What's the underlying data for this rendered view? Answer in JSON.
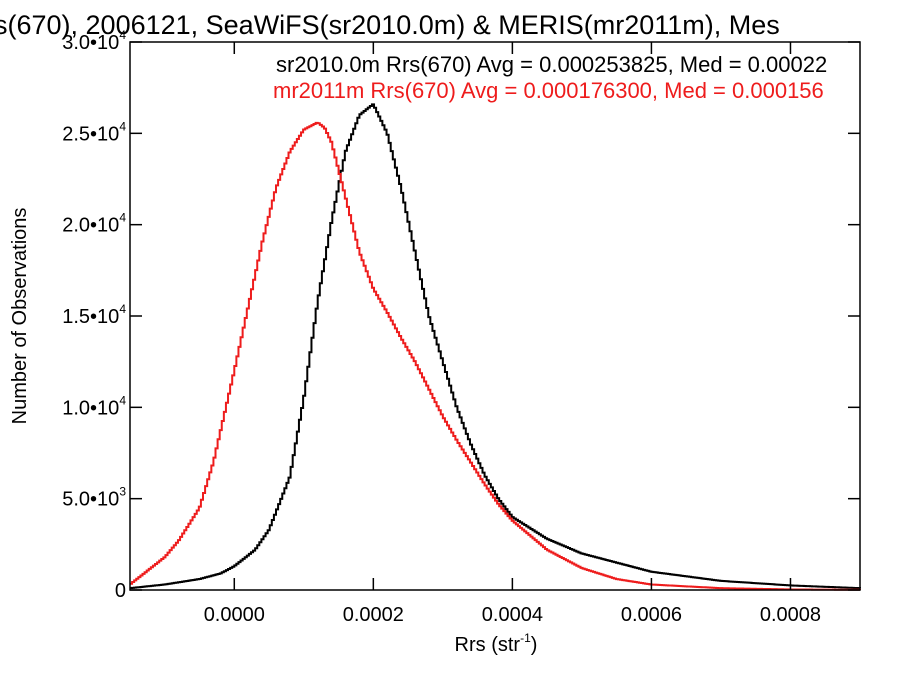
{
  "chart_data": {
    "type": "line",
    "title": "s(670), 2006121, SeaWiFS(sr2010.0m) & MERIS(mr2011m), Mes",
    "xlabel": "Rrs (str",
    "xlabel_sup": "-1",
    "xlabel_close": ")",
    "ylabel": "Number of Observations",
    "xlim": [
      -0.00015,
      0.0009
    ],
    "ylim": [
      0,
      30000
    ],
    "xticks": [
      {
        "value": 0.0,
        "label": "0.0000"
      },
      {
        "value": 0.0002,
        "label": "0.0002"
      },
      {
        "value": 0.0004,
        "label": "0.0004"
      },
      {
        "value": 0.0006,
        "label": "0.0006"
      },
      {
        "value": 0.0008,
        "label": "0.0008"
      }
    ],
    "yticks": [
      {
        "value": 0,
        "mant": "0",
        "exp": ""
      },
      {
        "value": 5000,
        "mant": "5.0•10",
        "exp": "3"
      },
      {
        "value": 10000,
        "mant": "1.0•10",
        "exp": "4"
      },
      {
        "value": 15000,
        "mant": "1.5•10",
        "exp": "4"
      },
      {
        "value": 20000,
        "mant": "2.0•10",
        "exp": "4"
      },
      {
        "value": 25000,
        "mant": "2.5•10",
        "exp": "4"
      },
      {
        "value": 30000,
        "mant": "3.0•10",
        "exp": "4"
      }
    ],
    "grid": false,
    "series": [
      {
        "name": "sr2010.0m",
        "color": "#000000",
        "legend": "sr2010.0m Rrs(670) Avg = 0.000253825, Med = 0.00022",
        "x": [
          -0.00015,
          -0.0001,
          -5e-05,
          -2e-05,
          0.0,
          3e-05,
          5e-05,
          8e-05,
          0.0001,
          0.00012,
          0.00014,
          0.00016,
          0.00018,
          0.0002,
          0.00022,
          0.00024,
          0.00026,
          0.00028,
          0.0003,
          0.00032,
          0.00034,
          0.00036,
          0.00038,
          0.0004,
          0.00045,
          0.0005,
          0.00055,
          0.0006,
          0.0007,
          0.0008,
          0.0009
        ],
        "y": [
          100,
          300,
          600,
          900,
          1300,
          2200,
          3300,
          6200,
          10500,
          15800,
          20200,
          24000,
          26000,
          26600,
          25000,
          22000,
          18500,
          15000,
          12500,
          10000,
          8000,
          6300,
          5000,
          4000,
          2800,
          2000,
          1500,
          1000,
          500,
          250,
          100
        ]
      },
      {
        "name": "mr2011m",
        "color": "#ee1c1c",
        "legend": "mr2011m Rrs(670) Avg = 0.000176300, Med = 0.000156",
        "x": [
          -0.00015,
          -0.0001,
          -8e-05,
          -5e-05,
          -3e-05,
          0.0,
          2e-05,
          4e-05,
          6e-05,
          8e-05,
          0.0001,
          0.00012,
          0.00013,
          0.00014,
          0.00016,
          0.00018,
          0.0002,
          0.00022,
          0.00024,
          0.00026,
          0.00028,
          0.0003,
          0.00032,
          0.00034,
          0.00036,
          0.00038,
          0.0004,
          0.00045,
          0.0005,
          0.00055,
          0.0006,
          0.0007,
          0.0008,
          0.0009
        ],
        "y": [
          300,
          1800,
          2700,
          4500,
          7000,
          12000,
          15500,
          19000,
          22000,
          24000,
          25200,
          25600,
          25300,
          24500,
          21500,
          18500,
          16500,
          15200,
          13800,
          12500,
          11000,
          9500,
          8200,
          7000,
          5800,
          4700,
          3800,
          2200,
          1200,
          600,
          300,
          100,
          30,
          10
        ]
      }
    ]
  }
}
